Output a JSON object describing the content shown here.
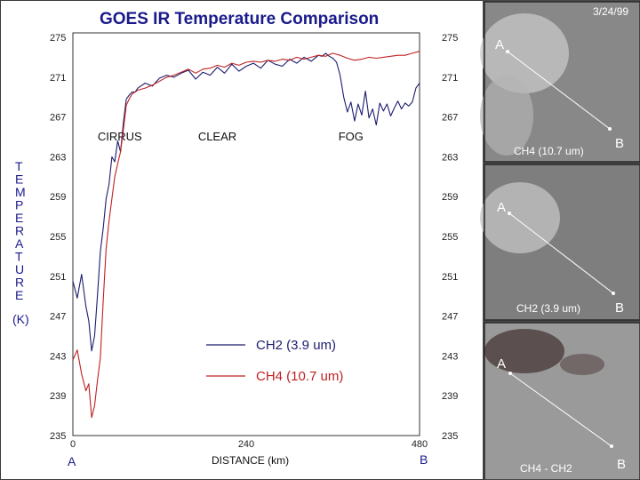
{
  "chart_data": {
    "type": "line",
    "title": {
      "bold_part": "GOES IR",
      "rest": " Temperature Comparison"
    },
    "ylabel_letters": [
      "T",
      "E",
      "M",
      "P",
      "E",
      "R",
      "A",
      "T",
      "U",
      "R",
      "E"
    ],
    "yunit": "(K)",
    "xlabel": "DISTANCE (km)",
    "xticks": [
      "0",
      "240",
      "480"
    ],
    "yticks": [
      "275",
      "271",
      "267",
      "263",
      "259",
      "255",
      "251",
      "247",
      "243",
      "239",
      "235"
    ],
    "ylim": [
      235,
      277
    ],
    "xlim": [
      0,
      480
    ],
    "x_start_label": "A",
    "x_end_label": "B",
    "regions": [
      {
        "label": "CIRRUS",
        "x": 65
      },
      {
        "label": "CLEAR",
        "x": 200
      },
      {
        "label": "FOG",
        "x": 385
      }
    ],
    "series": [
      {
        "name": "CH2 (3.9 um)",
        "color": "#1c1c6e",
        "x": [
          0,
          6,
          12,
          18,
          22,
          26,
          30,
          34,
          38,
          42,
          46,
          50,
          54,
          58,
          62,
          66,
          70,
          74,
          78,
          82,
          86,
          90,
          100,
          110,
          120,
          130,
          140,
          150,
          160,
          170,
          180,
          190,
          200,
          210,
          220,
          230,
          240,
          250,
          260,
          270,
          280,
          290,
          300,
          310,
          320,
          330,
          340,
          345,
          350,
          355,
          360,
          365,
          370,
          375,
          380,
          385,
          390,
          395,
          400,
          405,
          410,
          415,
          420,
          425,
          430,
          435,
          440,
          445,
          450,
          455,
          460,
          465,
          470,
          475,
          480
        ],
        "y": [
          250.5,
          248.8,
          251.2,
          248,
          246.5,
          243.5,
          245,
          249,
          253.5,
          255.8,
          258.8,
          260.2,
          263,
          262.5,
          264.6,
          263.5,
          266.5,
          268.8,
          269.2,
          269.5,
          269.5,
          269.9,
          270.4,
          270.1,
          270.9,
          271.2,
          271,
          271.4,
          271.7,
          270.8,
          271.5,
          271.2,
          272,
          271.4,
          272.3,
          271.6,
          272.1,
          272.4,
          271.9,
          272.7,
          272.3,
          272.1,
          272.8,
          272.4,
          273,
          272.6,
          273.2,
          273.1,
          273.4,
          273.1,
          272.9,
          272.5,
          271.2,
          269,
          267.5,
          268.5,
          266.6,
          268.3,
          267.2,
          269.6,
          266.9,
          267.8,
          266.2,
          268.4,
          267.6,
          268.3,
          267.1,
          267.9,
          268.6,
          267.8,
          268.4,
          268.1,
          268.5,
          269.9,
          270.4
        ]
      },
      {
        "name": "CH4 (10.7 um)",
        "color": "#c02020",
        "x": [
          0,
          6,
          12,
          18,
          22,
          26,
          30,
          34,
          38,
          42,
          46,
          50,
          54,
          58,
          62,
          66,
          70,
          74,
          78,
          82,
          86,
          90,
          100,
          110,
          120,
          130,
          140,
          150,
          160,
          170,
          180,
          190,
          200,
          210,
          220,
          230,
          240,
          250,
          260,
          270,
          280,
          290,
          300,
          310,
          320,
          330,
          340,
          350,
          360,
          370,
          380,
          390,
          400,
          410,
          420,
          430,
          440,
          450,
          460,
          470,
          480
        ],
        "y": [
          242.6,
          243.6,
          241.2,
          239.5,
          240.2,
          236.8,
          238,
          240.5,
          242.8,
          248.5,
          253.8,
          256.5,
          258.8,
          261,
          262.3,
          263.5,
          265.8,
          268.2,
          268.8,
          269.3,
          269.5,
          269.7,
          269.9,
          270.2,
          270.6,
          271,
          271.2,
          271.5,
          271.8,
          271.4,
          271.8,
          271.9,
          272.2,
          272,
          272.4,
          272.2,
          272.5,
          272.6,
          272.5,
          272.7,
          272.6,
          272.8,
          272.7,
          273,
          272.8,
          273,
          273.2,
          273.1,
          273.4,
          273.2,
          272.9,
          272.7,
          272.8,
          273,
          272.9,
          273,
          273.1,
          273.2,
          273.2,
          273.4,
          273.6
        ]
      }
    ]
  },
  "imagery": {
    "date": "3/24/99",
    "panels": [
      {
        "label": "CH4 (10.7 um)",
        "point_a": "A",
        "point_b": "B",
        "tone": "#8a8a8a"
      },
      {
        "label": "CH2 (3.9 um)",
        "point_a": "A",
        "point_b": "B",
        "tone": "#7e7e7e"
      },
      {
        "label": "CH4 - CH2",
        "point_a": "A",
        "point_b": "B",
        "tone": "#9a9a9a"
      }
    ]
  },
  "colors": {
    "title": "#1a1a8c",
    "legend_ch2": "#1c1c6e",
    "legend_ch4": "#c02020"
  }
}
